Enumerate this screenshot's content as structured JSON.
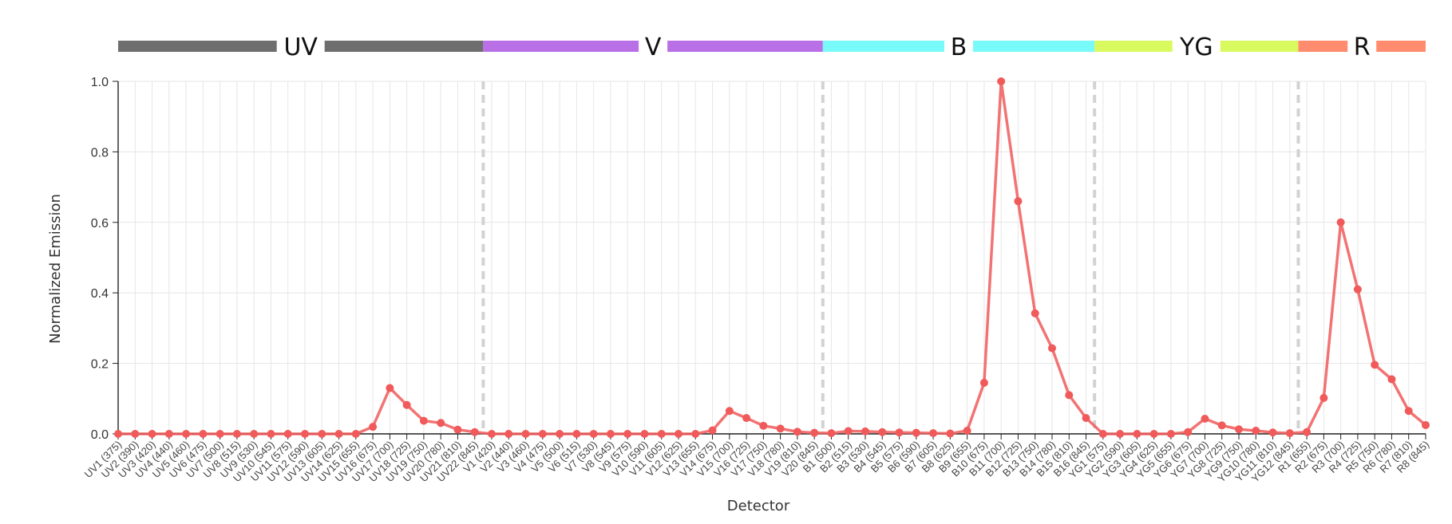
{
  "chart_data": {
    "type": "line",
    "xlabel": "Detector",
    "ylabel": "Normalized Emission",
    "ylim": [
      0,
      1.0
    ],
    "yticks": [
      "0.0",
      "0.2",
      "0.4",
      "0.6",
      "0.8",
      "1.0"
    ],
    "grid": true,
    "colors": {
      "line": "#f05a5a",
      "divider": "#d2d2d2"
    },
    "lasers": [
      {
        "name": "UV",
        "color": "#6e6e6e",
        "start": 0,
        "end": 22
      },
      {
        "name": "V",
        "color": "#b970e6",
        "start": 22,
        "end": 42
      },
      {
        "name": "B",
        "color": "#78fafa",
        "start": 42,
        "end": 58
      },
      {
        "name": "YG",
        "color": "#d9fa5f",
        "start": 58,
        "end": 70
      },
      {
        "name": "R",
        "color": "#ff8c6e",
        "start": 70,
        "end": 78
      }
    ],
    "dividers_after": [
      21,
      41,
      57,
      69
    ],
    "categories": [
      "UV1 (375)",
      "UV2 (390)",
      "UV3 (420)",
      "UV4 (440)",
      "UV5 (460)",
      "UV6 (475)",
      "UV7 (500)",
      "UV8 (515)",
      "UV9 (530)",
      "UV10 (545)",
      "UV11 (575)",
      "UV12 (590)",
      "UV13 (605)",
      "UV14 (625)",
      "UV15 (655)",
      "UV16 (675)",
      "UV17 (700)",
      "UV18 (725)",
      "UV19 (750)",
      "UV20 (780)",
      "UV21 (810)",
      "UV22 (845)",
      "V1 (420)",
      "V2 (440)",
      "V3 (460)",
      "V4 (475)",
      "V5 (500)",
      "V6 (515)",
      "V7 (530)",
      "V8 (545)",
      "V9 (575)",
      "V10 (590)",
      "V11 (605)",
      "V12 (625)",
      "V13 (655)",
      "V14 (675)",
      "V15 (700)",
      "V16 (725)",
      "V17 (750)",
      "V18 (780)",
      "V19 (810)",
      "V20 (845)",
      "B1 (500)",
      "B2 (515)",
      "B3 (530)",
      "B4 (545)",
      "B5 (575)",
      "B6 (590)",
      "B7 (605)",
      "B8 (625)",
      "B9 (655)",
      "B10 (675)",
      "B11 (700)",
      "B12 (725)",
      "B13 (750)",
      "B14 (780)",
      "B15 (810)",
      "B16 (845)",
      "YG1 (575)",
      "YG2 (590)",
      "YG3 (605)",
      "YG4 (625)",
      "YG5 (655)",
      "YG6 (675)",
      "YG7 (700)",
      "YG8 (725)",
      "YG9 (750)",
      "YG10 (780)",
      "YG11 (810)",
      "YG12 (845)",
      "R1 (655)",
      "R2 (675)",
      "R3 (700)",
      "R4 (725)",
      "R5 (750)",
      "R6 (780)",
      "R7 (810)",
      "R8 (845)"
    ],
    "series": [
      {
        "values": [
          0,
          0,
          0,
          0,
          0,
          0,
          0,
          0,
          0,
          0,
          0,
          0,
          0,
          0,
          0,
          0.02,
          0.13,
          0.082,
          0.037,
          0.031,
          0.012,
          0.005,
          0,
          0,
          0,
          0,
          0,
          0,
          0,
          0,
          0,
          0,
          0,
          0,
          0,
          0.01,
          0.065,
          0.045,
          0.023,
          0.015,
          0.006,
          0.003,
          0.002,
          0.008,
          0.007,
          0.005,
          0.004,
          0.003,
          0.002,
          0.001,
          0.009,
          0.145,
          1.0,
          0.66,
          0.342,
          0.243,
          0.11,
          0.045,
          0,
          0,
          0,
          0,
          0,
          0.005,
          0.043,
          0.024,
          0.013,
          0.009,
          0.004,
          0.002,
          0.005,
          0.102,
          0.6,
          0.41,
          0.196,
          0.155,
          0.065,
          0.025
        ]
      }
    ]
  }
}
